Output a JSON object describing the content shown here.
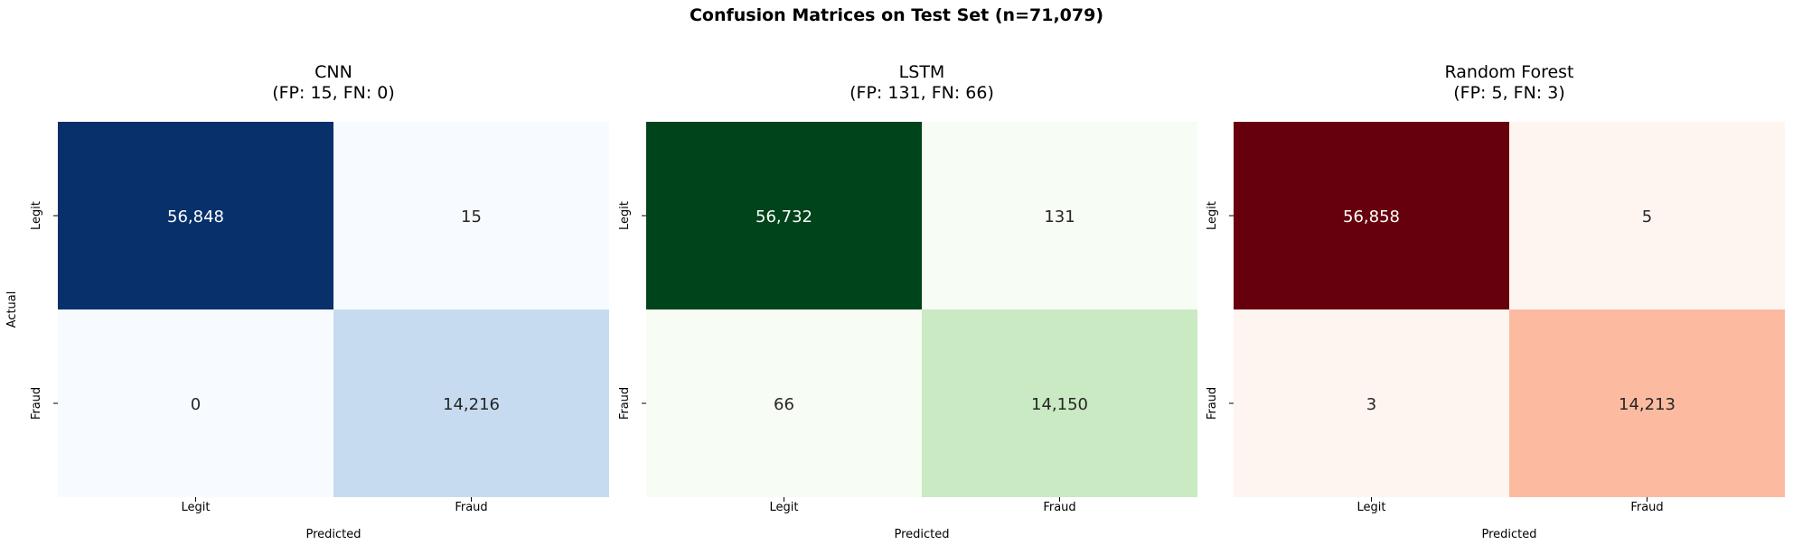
{
  "figure": {
    "suptitle": "Confusion Matrices on Test Set (n=71,079)"
  },
  "chart_data": [
    {
      "type": "heatmap",
      "title": "CNN\n(FP: 15, FN: 0)",
      "xlabel": "Predicted",
      "ylabel": "Actual",
      "x_tick_labels": [
        "Legit",
        "Fraud"
      ],
      "y_tick_labels": [
        "Legit",
        "Fraud"
      ],
      "values": [
        [
          56848,
          15
        ],
        [
          0,
          14216
        ]
      ],
      "value_labels": [
        [
          "56,848",
          "15"
        ],
        [
          "0",
          "14,216"
        ]
      ],
      "colormap": "Blues",
      "colors": {
        "low": "#f7fbff",
        "mid": "#c6dbef",
        "high": "#08306b"
      },
      "colorbar": false
    },
    {
      "type": "heatmap",
      "title": "LSTM\n(FP: 131, FN: 66)",
      "xlabel": "Predicted",
      "ylabel": "",
      "x_tick_labels": [
        "Legit",
        "Fraud"
      ],
      "y_tick_labels": [
        "Legit",
        "Fraud"
      ],
      "values": [
        [
          56732,
          131
        ],
        [
          66,
          14150
        ]
      ],
      "value_labels": [
        [
          "56,732",
          "131"
        ],
        [
          "66",
          "14,150"
        ]
      ],
      "colormap": "Greens",
      "colors": {
        "low": "#f7fcf5",
        "mid": "#c9eac2",
        "high": "#00441b"
      },
      "colorbar": false
    },
    {
      "type": "heatmap",
      "title": "Random Forest\n(FP: 5, FN: 3)",
      "xlabel": "Predicted",
      "ylabel": "",
      "x_tick_labels": [
        "Legit",
        "Fraud"
      ],
      "y_tick_labels": [
        "Legit",
        "Fraud"
      ],
      "values": [
        [
          56858,
          5
        ],
        [
          3,
          14213
        ]
      ],
      "value_labels": [
        [
          "56,858",
          "5"
        ],
        [
          "3",
          "14,213"
        ]
      ],
      "colormap": "Reds",
      "colors": {
        "low": "#fff5f0",
        "mid": "#fcbba1",
        "high": "#67000d"
      },
      "colorbar": false
    }
  ]
}
